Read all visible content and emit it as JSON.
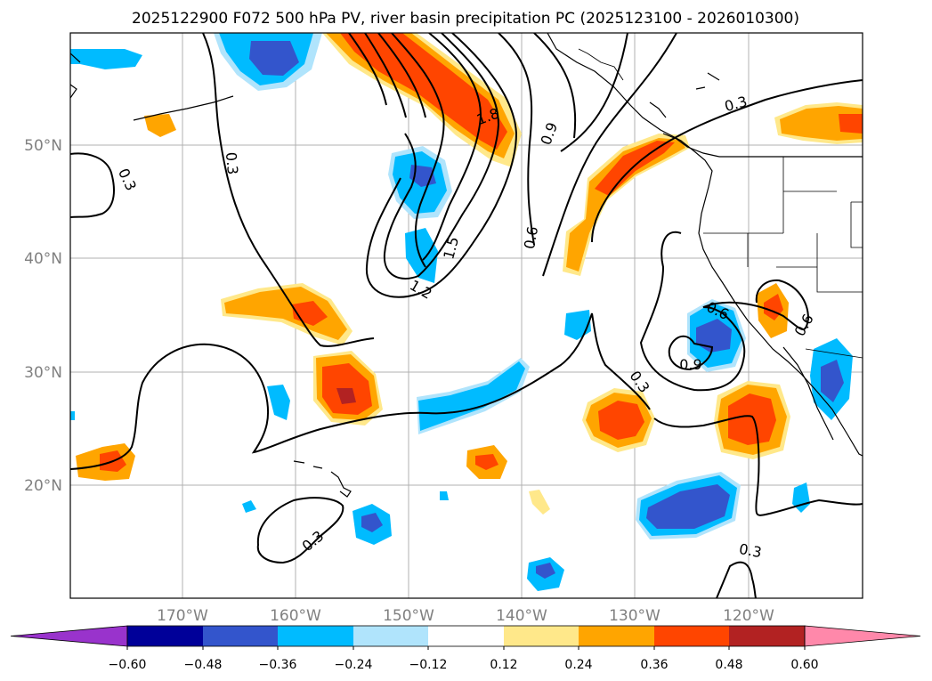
{
  "title": "2025122900 F072 500 hPa PV, river basin precipitation PC (2025123100 - 2026010300)",
  "lat_labels": [
    "50°N",
    "40°N",
    "30°N",
    "20°N"
  ],
  "lon_labels": [
    "170°W",
    "160°W",
    "150°W",
    "140°W",
    "130°W",
    "120°W"
  ],
  "colorbar": {
    "ticks": [
      "−0.60",
      "−0.48",
      "−0.36",
      "−0.24",
      "−0.12",
      "0.12",
      "0.24",
      "0.36",
      "0.48",
      "0.60"
    ],
    "colors": [
      "#9933cc",
      "#000099",
      "#3355cc",
      "#00bbff",
      "#b0e4fc",
      "#ffffff",
      "#ffe88a",
      "#ffa500",
      "#ff4500",
      "#b22222",
      "#ff88aa"
    ]
  },
  "contour_labels": [
    "0.3",
    "0.3",
    "0.3",
    "0.3",
    "0.3",
    "0.6",
    "0.6",
    "0.6",
    "0.9",
    "0.9",
    "1.2",
    "1.5",
    "1.8"
  ],
  "fill_colors": {
    "neg_light": "#b0e4fc",
    "neg_mid": "#00bbff",
    "neg_strong": "#3355cc",
    "pos_light": "#ffe88a",
    "pos_mid": "#ffa500",
    "pos_strong": "#ff4500",
    "pos_max": "#b22222"
  }
}
